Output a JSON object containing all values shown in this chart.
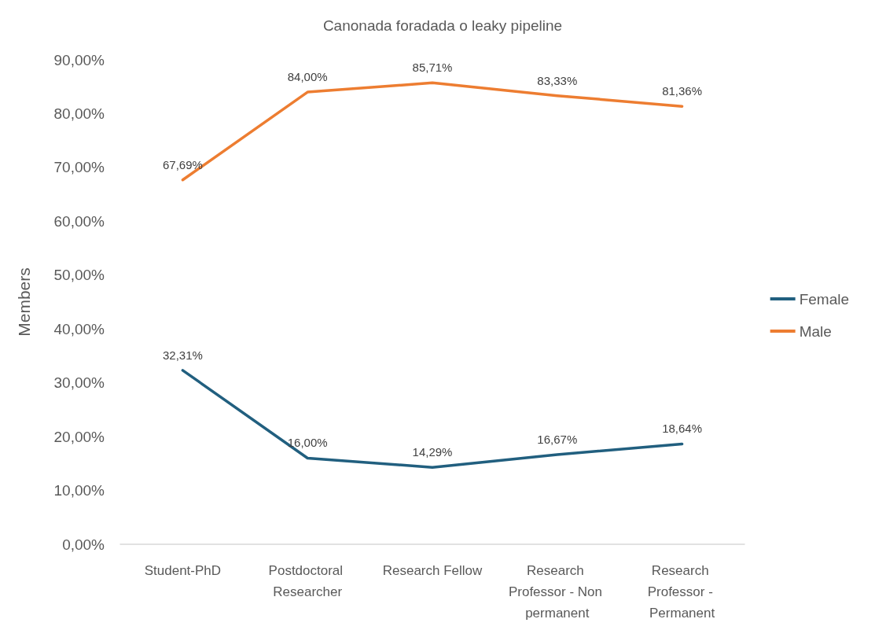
{
  "chart_data": {
    "type": "line",
    "title": "Canonada foradada o leaky pipeline",
    "ylabel": "Members",
    "categories": [
      "Student-PhD",
      "Postdoctoral Researcher",
      "Research Fellow",
      "Research Professor - Non permanent",
      "Research Professor - Permanent"
    ],
    "series": [
      {
        "name": "Female",
        "color": "#215f7f",
        "values": [
          32.31,
          16.0,
          14.29,
          16.67,
          18.64
        ],
        "value_labels": [
          "32,31%",
          "16,00%",
          "14,29%",
          "16,67%",
          "18,64%"
        ]
      },
      {
        "name": "Male",
        "color": "#ed7d31",
        "values": [
          67.69,
          84.0,
          85.71,
          83.33,
          81.36
        ],
        "value_labels": [
          "67,69%",
          "84,00%",
          "85,71%",
          "83,33%",
          "81,36%"
        ]
      }
    ],
    "ylim": [
      0,
      90
    ],
    "yticks": [
      {
        "value": 0,
        "label": "0,00%"
      },
      {
        "value": 10,
        "label": "10,00%"
      },
      {
        "value": 20,
        "label": "20,00%"
      },
      {
        "value": 30,
        "label": "30,00%"
      },
      {
        "value": 40,
        "label": "40,00%"
      },
      {
        "value": 50,
        "label": "50,00%"
      },
      {
        "value": 60,
        "label": "60,00%"
      },
      {
        "value": 70,
        "label": "70,00%"
      },
      {
        "value": 80,
        "label": "80,00%"
      },
      {
        "value": 90,
        "label": "90,00%"
      }
    ],
    "grid": false,
    "legend": "right",
    "marker": "none",
    "line_style": "solid"
  }
}
